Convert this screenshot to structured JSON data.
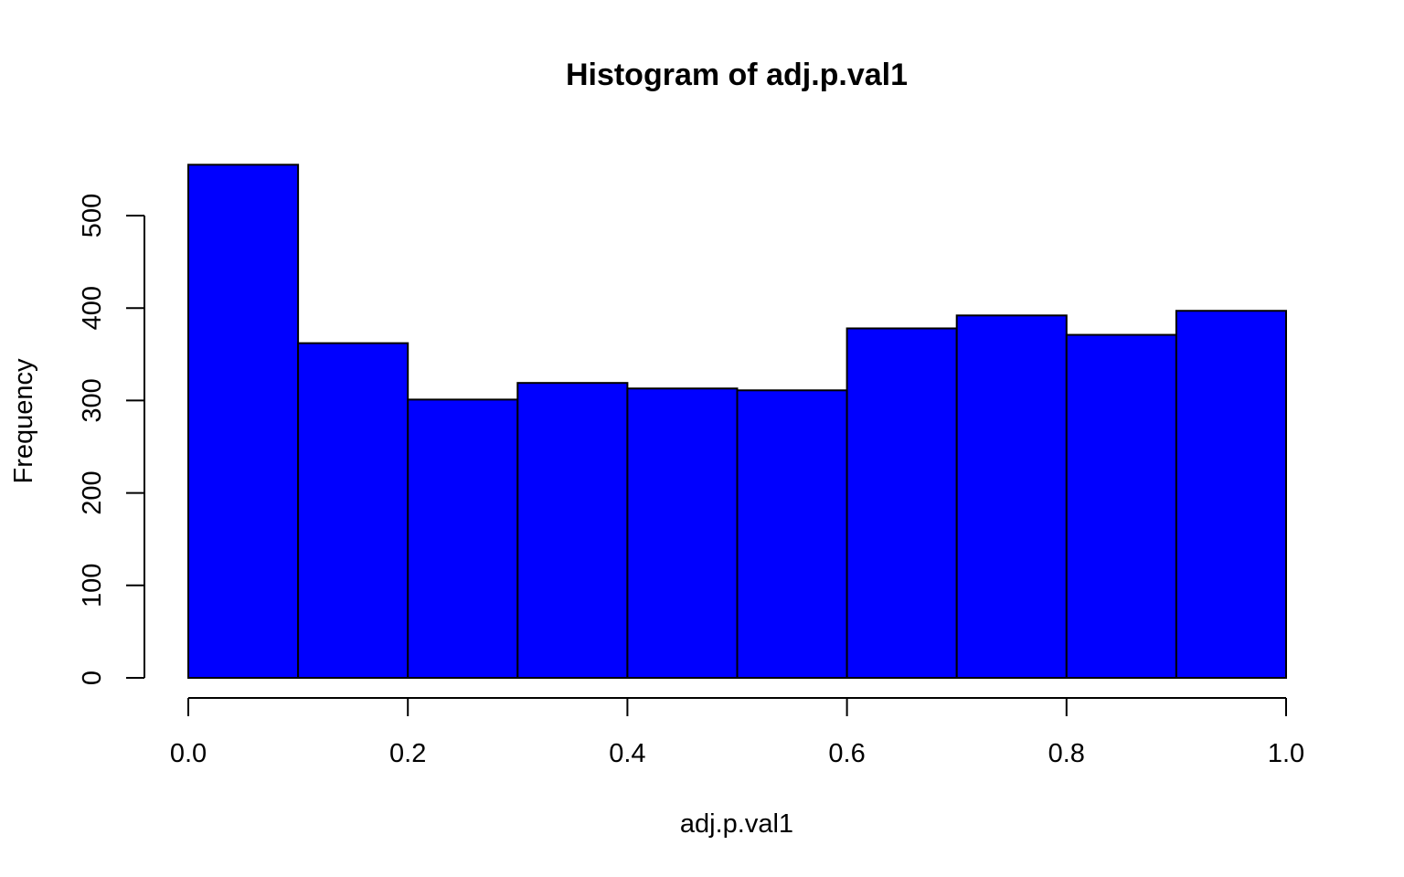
{
  "chart_data": {
    "type": "bar",
    "title": "Histogram of adj.p.val1",
    "xlabel": "adj.p.val1",
    "ylabel": "Frequency",
    "bins": [
      {
        "from": 0.0,
        "to": 0.1,
        "count": 555
      },
      {
        "from": 0.1,
        "to": 0.2,
        "count": 362
      },
      {
        "from": 0.2,
        "to": 0.3,
        "count": 301
      },
      {
        "from": 0.3,
        "to": 0.4,
        "count": 319
      },
      {
        "from": 0.4,
        "to": 0.5,
        "count": 313
      },
      {
        "from": 0.5,
        "to": 0.6,
        "count": 311
      },
      {
        "from": 0.6,
        "to": 0.7,
        "count": 378
      },
      {
        "from": 0.7,
        "to": 0.8,
        "count": 392
      },
      {
        "from": 0.8,
        "to": 0.9,
        "count": 371
      },
      {
        "from": 0.9,
        "to": 1.0,
        "count": 397
      }
    ],
    "xlim": [
      0,
      1
    ],
    "ylim": [
      0,
      555
    ],
    "x_ticks": [
      "0.0",
      "0.2",
      "0.4",
      "0.6",
      "0.8",
      "1.0"
    ],
    "y_ticks": [
      "0",
      "100",
      "200",
      "300",
      "400",
      "500"
    ],
    "grid": false,
    "bar_color": "#0000ff",
    "edge_color": "#000000"
  }
}
